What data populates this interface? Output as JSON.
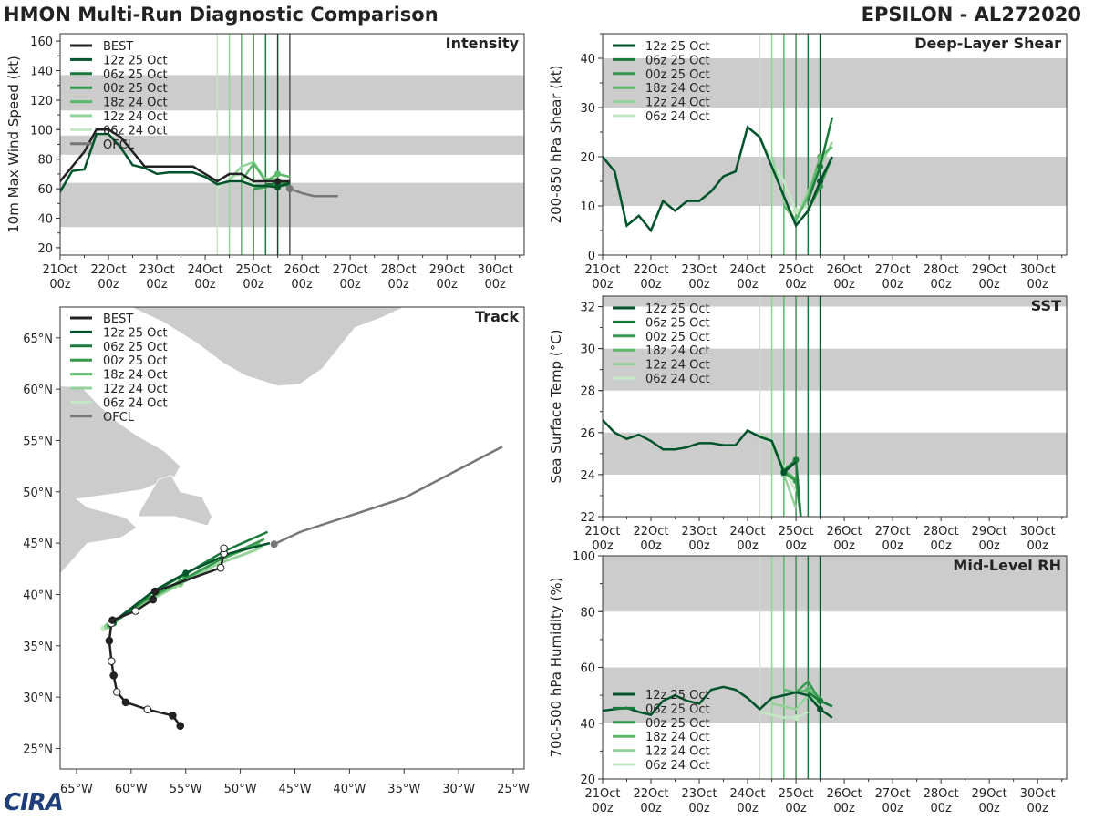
{
  "header": {
    "title": "HMON Multi-Run Diagnostic Comparison",
    "storm": "EPSILON - AL272020"
  },
  "logo": "CIRA",
  "colors": {
    "best": "#222222",
    "ofcl": "#777777",
    "shade": "#cccccc",
    "runs": [
      "#00532a",
      "#1a7a3a",
      "#35984c",
      "#5cb86a",
      "#93d39a",
      "#c4e8c4"
    ]
  },
  "chart_data": [
    {
      "id": "intensity",
      "type": "line",
      "title": "Intensity",
      "ylabel": "10m Max Wind Speed (kt)",
      "xlim": [
        0,
        9.6
      ],
      "ylim": [
        15,
        165
      ],
      "yticks": [
        20,
        40,
        60,
        80,
        100,
        120,
        140,
        160
      ],
      "xtick_days": [
        "21Oct",
        "22Oct",
        "23Oct",
        "24Oct",
        "25Oct",
        "26Oct",
        "27Oct",
        "28Oct",
        "29Oct",
        "30Oct"
      ],
      "xtick_hours": [
        "00z",
        "00z",
        "00z",
        "00z",
        "00z",
        "00z",
        "00z",
        "00z",
        "00z",
        "00z"
      ],
      "bands": [
        [
          34,
          64
        ],
        [
          83,
          96
        ],
        [
          113,
          137
        ]
      ],
      "run_lines": [
        3.25,
        3.5,
        3.75,
        4.0,
        4.25,
        4.5
      ],
      "current_line": 4.75,
      "legend": [
        "BEST",
        "12z 25 Oct",
        "06z 25 Oct",
        "00z 25 Oct",
        "18z 24 Oct",
        "12z 24 Oct",
        "06z 24 Oct",
        "OFCL"
      ],
      "best": {
        "x": [
          -0.25,
          0.0,
          0.25,
          0.5,
          0.75,
          1.0,
          1.25,
          1.5,
          1.75,
          2.0,
          2.25,
          2.5,
          2.75,
          3.0,
          3.25,
          3.5,
          3.75,
          4.0,
          4.25,
          4.5,
          4.75
        ],
        "y": [
          55,
          65,
          75,
          85,
          100,
          100,
          95,
          85,
          75,
          75,
          75,
          75,
          75,
          70,
          65,
          70,
          70,
          65,
          65,
          65,
          65
        ]
      },
      "best_markers": [
        4.5
      ],
      "ofcl": {
        "x": [
          4.75,
          5.0,
          5.25,
          5.5,
          5.75
        ],
        "y": [
          60,
          57,
          55,
          55,
          55
        ]
      },
      "runs": [
        {
          "name": "12z 25 Oct",
          "x": [
            -0.25,
            0.0,
            0.25,
            0.5,
            0.75,
            1.0,
            1.25,
            1.5,
            1.75,
            2.0,
            2.25,
            2.5,
            2.75,
            3.0,
            3.25,
            3.5,
            3.75,
            4.0,
            4.25,
            4.5,
            4.75
          ],
          "y": [
            50,
            58,
            72,
            73,
            97,
            97,
            88,
            76,
            74,
            70,
            71,
            71,
            71,
            68,
            63,
            65,
            65,
            62,
            62,
            61,
            64
          ]
        },
        {
          "name": "06z 25 Oct",
          "x": [
            4.25,
            4.5,
            4.75
          ],
          "y": [
            63,
            63,
            62
          ]
        },
        {
          "name": "00z 25 Oct",
          "x": [
            4.0,
            4.25,
            4.5,
            4.75
          ],
          "y": [
            60,
            61,
            65,
            63
          ]
        },
        {
          "name": "18z 24 Oct",
          "x": [
            3.75,
            4.0,
            4.25,
            4.5,
            4.75
          ],
          "y": [
            65,
            77,
            65,
            70,
            68
          ]
        },
        {
          "name": "12z 24 Oct",
          "x": [
            3.5,
            3.75,
            4.0,
            4.25,
            4.5
          ],
          "y": [
            66,
            75,
            78,
            66,
            67
          ]
        },
        {
          "name": "06z 24 Oct",
          "x": [
            3.25,
            3.5,
            3.75,
            4.0,
            4.25
          ],
          "y": [
            60,
            67,
            70,
            62,
            60
          ]
        }
      ]
    },
    {
      "id": "shear",
      "type": "line",
      "title": "Deep-Layer Shear",
      "ylabel": "200-850 hPa Shear (kt)",
      "xlim": [
        0,
        9.6
      ],
      "ylim": [
        0,
        45
      ],
      "yticks": [
        0,
        10,
        20,
        30,
        40
      ],
      "xtick_days": [
        "21Oct",
        "22Oct",
        "23Oct",
        "24Oct",
        "25Oct",
        "26Oct",
        "27Oct",
        "28Oct",
        "29Oct",
        "30Oct"
      ],
      "xtick_hours": [
        "00z",
        "00z",
        "00z",
        "00z",
        "00z",
        "00z",
        "00z",
        "00z",
        "00z",
        "00z"
      ],
      "bands": [
        [
          10,
          20
        ],
        [
          30,
          40
        ]
      ],
      "run_lines": [
        3.25,
        3.5,
        3.75,
        4.0,
        4.25,
        4.5
      ],
      "legend": [
        "12z 25 Oct",
        "06z 25 Oct",
        "00z 25 Oct",
        "18z 24 Oct",
        "12z 24 Oct",
        "06z 24 Oct"
      ],
      "runs": [
        {
          "name": "12z 25 Oct",
          "x": [
            -0.25,
            0.0,
            0.25,
            0.5,
            0.75,
            1.0,
            1.25,
            1.5,
            1.75,
            2.0,
            2.25,
            2.5,
            2.75,
            3.0,
            3.25,
            3.5,
            3.75,
            4.0,
            4.25,
            4.5,
            4.75
          ],
          "y": [
            17,
            20,
            17,
            6,
            8,
            5,
            11,
            9,
            11,
            11,
            13,
            16,
            17,
            26,
            24,
            18,
            12,
            6,
            9,
            15,
            20
          ]
        },
        {
          "name": "06z 25 Oct",
          "x": [
            4.25,
            4.5,
            4.75
          ],
          "y": [
            11,
            18,
            28
          ]
        },
        {
          "name": "00z 25 Oct",
          "x": [
            4.0,
            4.25,
            4.5,
            4.75
          ],
          "y": [
            6,
            9,
            14,
            20
          ]
        },
        {
          "name": "18z 24 Oct",
          "x": [
            3.75,
            4.0,
            4.25,
            4.5,
            4.75
          ],
          "y": [
            10,
            7,
            12,
            20,
            22
          ]
        },
        {
          "name": "12z 24 Oct",
          "x": [
            3.5,
            3.75,
            4.0,
            4.25,
            4.5,
            4.75
          ],
          "y": [
            20,
            11,
            7,
            13,
            18,
            23
          ]
        },
        {
          "name": "06z 24 Oct",
          "x": [
            3.25,
            3.5,
            3.75,
            4.0,
            4.25
          ],
          "y": [
            24,
            19,
            15,
            9,
            10
          ]
        }
      ]
    },
    {
      "id": "sst",
      "type": "line",
      "title": "SST",
      "ylabel": "Sea Surface Temp (°C)",
      "xlim": [
        0,
        9.6
      ],
      "ylim": [
        22,
        32.5
      ],
      "yticks": [
        22,
        24,
        26,
        28,
        30,
        32
      ],
      "xtick_days": [
        "21Oct",
        "22Oct",
        "23Oct",
        "24Oct",
        "25Oct",
        "26Oct",
        "27Oct",
        "28Oct",
        "29Oct",
        "30Oct"
      ],
      "xtick_hours": [
        "00z",
        "00z",
        "00z",
        "00z",
        "00z",
        "00z",
        "00z",
        "00z",
        "00z",
        "00z"
      ],
      "bands": [
        [
          24,
          26
        ],
        [
          28,
          30
        ],
        [
          32,
          32.5
        ]
      ],
      "run_lines": [
        3.25,
        3.5,
        3.75,
        4.0,
        4.25,
        4.5
      ],
      "legend": [
        "12z 25 Oct",
        "06z 25 Oct",
        "00z 25 Oct",
        "18z 24 Oct",
        "12z 24 Oct",
        "06z 24 Oct"
      ],
      "runs": [
        {
          "name": "12z 25 Oct",
          "x": [
            -0.25,
            0.0,
            0.25,
            0.5,
            0.75,
            1.0,
            1.25,
            1.5,
            1.75,
            2.0,
            2.25,
            2.5,
            2.75,
            3.0,
            3.25,
            3.5,
            3.75,
            4.0
          ],
          "y": [
            26.9,
            26.6,
            26.0,
            25.7,
            25.9,
            25.6,
            25.2,
            25.2,
            25.3,
            25.5,
            25.5,
            25.4,
            25.4,
            26.1,
            25.8,
            25.6,
            24.1,
            24.6
          ]
        },
        {
          "name": "06z 25 Oct",
          "x": [
            3.75,
            4.0,
            4.1
          ],
          "y": [
            24.2,
            24.7,
            22.0
          ]
        },
        {
          "name": "00z 25 Oct",
          "x": [
            3.75,
            4.0,
            4.1
          ],
          "y": [
            24.1,
            23.7,
            22.0
          ]
        },
        {
          "name": "18z 24 Oct",
          "x": [
            3.5,
            3.75,
            4.0
          ],
          "y": [
            25.6,
            24.2,
            23.8
          ]
        },
        {
          "name": "12z 24 Oct",
          "x": [
            3.25,
            3.5,
            3.75,
            4.0
          ],
          "y": [
            25.9,
            25.6,
            24.0,
            22.4
          ]
        },
        {
          "name": "06z 24 Oct",
          "x": [
            3.25,
            3.5,
            3.75,
            4.0
          ],
          "y": [
            25.8,
            25.5,
            24.3,
            23.2
          ]
        }
      ]
    },
    {
      "id": "rh",
      "type": "line",
      "title": "Mid-Level RH",
      "ylabel": "700-500 hPa Humidity (%)",
      "xlim": [
        0,
        9.6
      ],
      "ylim": [
        20,
        100
      ],
      "yticks": [
        20,
        40,
        60,
        80,
        100
      ],
      "xtick_days": [
        "21Oct",
        "22Oct",
        "23Oct",
        "24Oct",
        "25Oct",
        "26Oct",
        "27Oct",
        "28Oct",
        "29Oct",
        "30Oct"
      ],
      "xtick_hours": [
        "00z",
        "00z",
        "00z",
        "00z",
        "00z",
        "00z",
        "00z",
        "00z",
        "00z",
        "00z"
      ],
      "bands": [
        [
          40,
          60
        ],
        [
          80,
          100
        ]
      ],
      "run_lines": [
        3.25,
        3.5,
        3.75,
        4.0,
        4.25,
        4.5
      ],
      "legend": [
        "12z 25 Oct",
        "06z 25 Oct",
        "00z 25 Oct",
        "18z 24 Oct",
        "12z 24 Oct",
        "06z 24 Oct"
      ],
      "runs": [
        {
          "name": "12z 25 Oct",
          "x": [
            -0.25,
            0.0,
            0.25,
            0.5,
            0.75,
            1.0,
            1.25,
            1.5,
            1.75,
            2.0,
            2.25,
            2.5,
            2.75,
            3.0,
            3.25,
            3.5,
            3.75,
            4.0,
            4.25,
            4.5,
            4.75
          ],
          "y": [
            45,
            44.5,
            45,
            45.5,
            44,
            43,
            48,
            50,
            48,
            47,
            52,
            53,
            52,
            49,
            45,
            49,
            50,
            51,
            50,
            45,
            42
          ]
        },
        {
          "name": "06z 25 Oct",
          "x": [
            4.25,
            4.5,
            4.75
          ],
          "y": [
            51,
            48,
            46
          ]
        },
        {
          "name": "00z 25 Oct",
          "x": [
            4.0,
            4.25,
            4.5,
            4.75
          ],
          "y": [
            51,
            55,
            48,
            46
          ]
        },
        {
          "name": "18z 24 Oct",
          "x": [
            3.75,
            4.0,
            4.25,
            4.5
          ],
          "y": [
            52,
            51,
            52,
            49
          ]
        },
        {
          "name": "12z 24 Oct",
          "x": [
            3.5,
            3.75,
            4.0,
            4.25,
            4.5
          ],
          "y": [
            47,
            46,
            45,
            50,
            47
          ]
        },
        {
          "name": "06z 24 Oct",
          "x": [
            3.25,
            3.5,
            3.75,
            4.0,
            4.25
          ],
          "y": [
            44,
            43,
            42,
            42,
            44
          ]
        }
      ]
    },
    {
      "id": "track",
      "type": "scatter",
      "title": "Track",
      "xlim": [
        -66.5,
        -24
      ],
      "ylim": [
        23,
        68
      ],
      "xticks": [
        -65,
        -60,
        -55,
        -50,
        -45,
        -40,
        -35,
        -30,
        -25
      ],
      "xtick_labels": [
        "65°W",
        "60°W",
        "55°W",
        "50°W",
        "45°W",
        "40°W",
        "35°W",
        "30°W",
        "25°W"
      ],
      "yticks": [
        25,
        30,
        35,
        40,
        45,
        50,
        55,
        60,
        65
      ],
      "ytick_labels": [
        "25°N",
        "30°N",
        "35°N",
        "40°N",
        "45°N",
        "50°N",
        "55°N",
        "60°N",
        "65°N"
      ],
      "legend": [
        "BEST",
        "12z 25 Oct",
        "06z 25 Oct",
        "00z 25 Oct",
        "18z 24 Oct",
        "12z 24 Oct",
        "06z 24 Oct",
        "OFCL"
      ],
      "best": {
        "lon": [
          -55.5,
          -56.2,
          -58.5,
          -60.5,
          -61.3,
          -61.6,
          -61.8,
          -62.0,
          -61.8,
          -61.7,
          -59.6,
          -58.0,
          -57.8,
          -51.8,
          -51.5,
          -51.5
        ],
        "lat": [
          27.2,
          28.2,
          28.8,
          29.5,
          30.5,
          32.1,
          33.5,
          35.5,
          37.2,
          37.5,
          38.4,
          39.5,
          40.3,
          42.6,
          44.0,
          44.5
        ],
        "filled": [
          true,
          true,
          false,
          true,
          false,
          true,
          false,
          true,
          false,
          true,
          false,
          true,
          true,
          false,
          false,
          false
        ]
      },
      "ofcl": {
        "lon": [
          -46.9,
          -44.5,
          -35.0,
          -26.0
        ],
        "lat": [
          44.9,
          46.1,
          49.4,
          54.4
        ]
      },
      "runs": [
        {
          "name": "12z 25 Oct",
          "lon": [
            -61.8,
            -58.0,
            -55.0,
            -51.0,
            -47.3
          ],
          "lat": [
            37.2,
            40.3,
            42.1,
            44.0,
            45.0
          ]
        },
        {
          "name": "06z 25 Oct",
          "lon": [
            -61.6,
            -58.2,
            -55.0,
            -51.5,
            -47.5
          ],
          "lat": [
            37.2,
            40.1,
            42.0,
            44.2,
            46.1
          ]
        },
        {
          "name": "00z 25 Oct",
          "lon": [
            -61.9,
            -58.5,
            -55.0,
            -51.5,
            -47.8
          ],
          "lat": [
            37.1,
            39.6,
            41.6,
            43.6,
            45.4
          ]
        },
        {
          "name": "18z 24 Oct",
          "lon": [
            -62.0,
            -58.8,
            -55.5,
            -52.0,
            -48.2
          ],
          "lat": [
            37.0,
            39.3,
            41.2,
            43.3,
            45.0
          ]
        },
        {
          "name": "12z 24 Oct",
          "lon": [
            -62.2,
            -59.0,
            -55.5,
            -52.0,
            -48.0
          ],
          "lat": [
            36.9,
            39.0,
            41.0,
            43.0,
            44.6
          ]
        },
        {
          "name": "06z 24 Oct",
          "lon": [
            -62.5,
            -59.5,
            -56.0,
            -52.5,
            -48.5
          ],
          "lat": [
            36.7,
            38.7,
            40.8,
            42.8,
            44.3
          ]
        }
      ]
    }
  ]
}
